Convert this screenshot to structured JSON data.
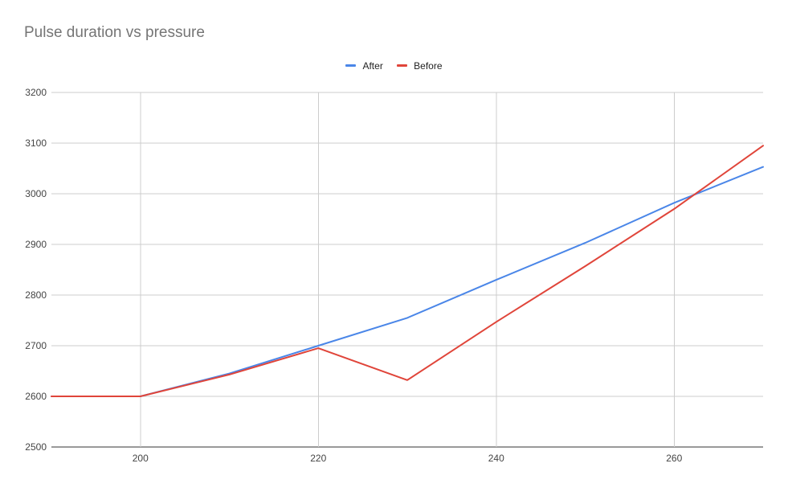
{
  "chart_data": {
    "type": "line",
    "title": "Pulse duration vs pressure",
    "xlabel": "",
    "ylabel": "",
    "xlim": [
      190,
      270
    ],
    "ylim": [
      2500,
      3200
    ],
    "x_ticks": [
      200,
      220,
      240,
      260
    ],
    "y_ticks": [
      2500,
      2600,
      2700,
      2800,
      2900,
      3000,
      3100,
      3200
    ],
    "grid": true,
    "legend_position": "top-center",
    "series": [
      {
        "name": "After",
        "color": "#4a86e8",
        "x": [
          190,
          200,
          210,
          220,
          230,
          240,
          250,
          260,
          270
        ],
        "y": [
          2600,
          2600,
          2645,
          2700,
          2755,
          2830,
          2903,
          2982,
          3053
        ]
      },
      {
        "name": "Before",
        "color": "#e0453a",
        "x": [
          190,
          200,
          210,
          220,
          230,
          240,
          250,
          260,
          270
        ],
        "y": [
          2600,
          2600,
          2643,
          2695,
          2632,
          2747,
          2857,
          2970,
          3095
        ]
      }
    ]
  }
}
